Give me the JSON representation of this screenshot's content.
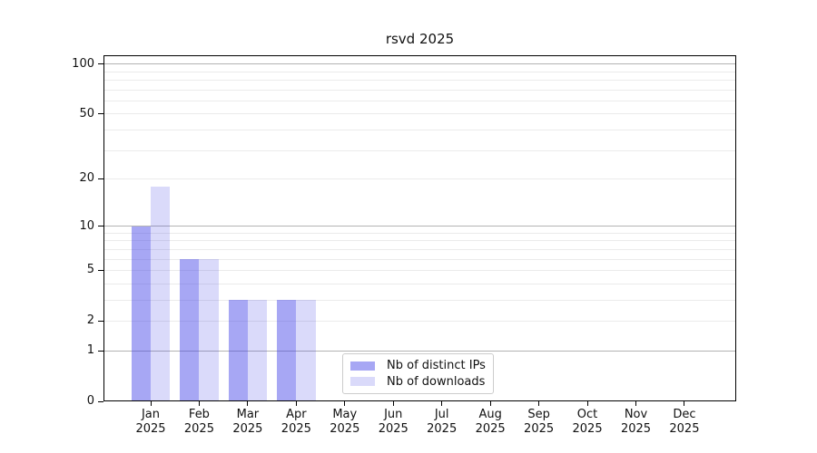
{
  "title": "rsvd 2025",
  "chart_data": {
    "type": "bar",
    "title": "rsvd 2025",
    "categories": [
      "Jan 2025",
      "Feb 2025",
      "Mar 2025",
      "Apr 2025",
      "May 2025",
      "Jun 2025",
      "Jul 2025",
      "Aug 2025",
      "Sep 2025",
      "Oct 2025",
      "Nov 2025",
      "Dec 2025"
    ],
    "series": [
      {
        "name": "Nb of distinct IPs",
        "color": "#3c3ce6",
        "alpha": 0.45,
        "solid_hex": "#a8a8f4",
        "values": [
          10,
          6,
          3,
          3,
          0,
          0,
          0,
          0,
          0,
          0,
          0,
          0
        ]
      },
      {
        "name": "Nb of downloads",
        "color": "#3c3ce6",
        "alpha": 0.19,
        "solid_hex": "#dadaf9",
        "values": [
          18,
          6,
          3,
          3,
          0,
          0,
          0,
          0,
          0,
          0,
          0,
          0
        ]
      }
    ],
    "xlabel": "",
    "ylabel": "",
    "yscale": "log1p",
    "ylim": [
      0,
      112
    ],
    "y_tick_values": [
      0,
      1,
      2,
      5,
      10,
      20,
      50,
      100
    ],
    "y_tick_labels": [
      "0",
      "1",
      "2",
      "5",
      "10",
      "20",
      "50",
      "100"
    ],
    "major_grid_values": [
      1,
      10,
      100
    ],
    "minor_grid_values": [
      2,
      3,
      4,
      5,
      6,
      7,
      8,
      9,
      20,
      30,
      40,
      50,
      60,
      70,
      80,
      90
    ],
    "grid": true,
    "legend_position": "lower-center",
    "colors": {
      "major_grid": "#b3b3b3",
      "minor_grid": "#ebebeb",
      "spine": "#000000",
      "text": "#111111",
      "background": "#ffffff"
    }
  }
}
